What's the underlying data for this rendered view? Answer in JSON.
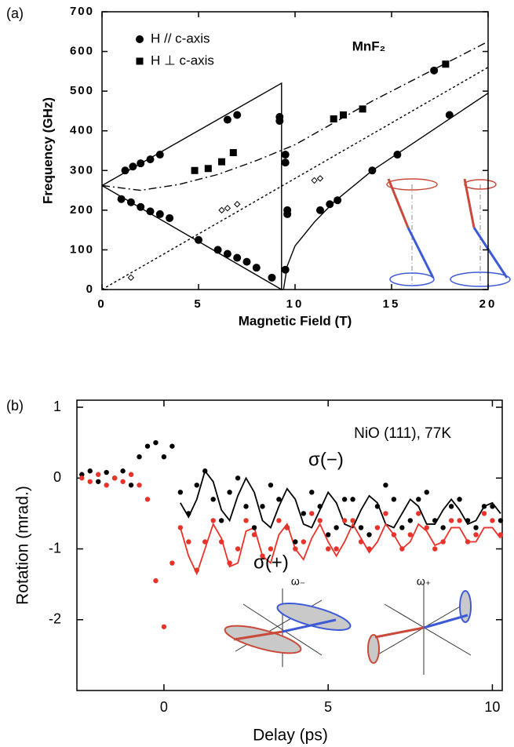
{
  "chart_data": [
    {
      "type": "scatter",
      "panel_label": "(a)",
      "annotation": "MnF₂",
      "x_label": "Magnetic Field (T)",
      "y_label": "Frequency (GHz)",
      "xlim": [
        0,
        20
      ],
      "xticks": [
        0,
        5,
        10,
        15,
        20
      ],
      "ylim": [
        0,
        700
      ],
      "yticks": [
        0,
        100,
        200,
        300,
        400,
        500,
        600,
        700
      ],
      "series": [
        {
          "name": "H // c-axis",
          "color": "#000000",
          "marker": "circle",
          "x": [
            1.2,
            1.6,
            2.0,
            2.5,
            3.0,
            6.5,
            7.0,
            1.0,
            1.5,
            2.0,
            2.5,
            3.0,
            3.5,
            5.0,
            6.0,
            6.5,
            7.0,
            7.5,
            8.0,
            8.8,
            9.2,
            9.2,
            9.5,
            9.5,
            9.6,
            9.6,
            9.5,
            11.3,
            11.8,
            12.2,
            14.0,
            15.3,
            17.2,
            18.0
          ],
          "values": [
            300,
            310,
            318,
            328,
            340,
            428,
            440,
            228,
            220,
            208,
            197,
            190,
            180,
            125,
            100,
            90,
            80,
            70,
            55,
            30,
            435,
            425,
            340,
            320,
            200,
            190,
            50,
            200,
            215,
            225,
            300,
            340,
            552,
            440
          ]
        },
        {
          "name": "H ⊥ c-axis",
          "color": "#000000",
          "marker": "square",
          "x": [
            4.8,
            5.5,
            6.2,
            6.8,
            12.0,
            12.5,
            13.5,
            17.8
          ],
          "values": [
            300,
            305,
            322,
            345,
            430,
            440,
            455,
            568
          ]
        },
        {
          "color": "#000000",
          "marker": "open-diamond",
          "x": [
            1.5,
            6.2,
            6.5,
            7.0,
            11.0,
            11.3
          ],
          "values": [
            30,
            200,
            205,
            215,
            275,
            280
          ]
        }
      ],
      "fits": [
        {
          "style": "solid",
          "x": [
            0,
            9.3,
            9.3,
            0
          ],
          "values": [
            262,
            520,
            0,
            262
          ]
        },
        {
          "style": "dashdot",
          "x": [
            0,
            2,
            4,
            6,
            8,
            10,
            12,
            14,
            16,
            18,
            20
          ],
          "values": [
            262,
            250,
            265,
            290,
            325,
            365,
            420,
            475,
            525,
            575,
            625
          ]
        },
        {
          "style": "dotted",
          "x": [
            0,
            20
          ],
          "values": [
            0,
            560
          ]
        },
        {
          "style": "solid",
          "x": [
            9.4,
            9.6,
            10,
            11,
            12,
            14,
            16,
            18,
            20
          ],
          "values": [
            0,
            60,
            110,
            170,
            220,
            300,
            365,
            430,
            495
          ]
        }
      ]
    },
    {
      "type": "scatter",
      "panel_label": "(b)",
      "annotation": "NiO (111), 77K",
      "x_label": "Delay (ps)",
      "y_label": "Rotation (mrad.)",
      "inset_labels": [
        "ω₋",
        "ω₊"
      ],
      "xlim": [
        -2.65,
        10.3
      ],
      "xticks": [
        0,
        5,
        10
      ],
      "ylim": [
        -3,
        1.1
      ],
      "yticks": [
        -2,
        -1,
        0,
        1
      ],
      "series": [
        {
          "name": "σ(−)",
          "color": "#000000",
          "marker": "dot",
          "x": [
            -2.5,
            -2.25,
            -2,
            -1.75,
            -1.5,
            -1.25,
            -1,
            -0.75,
            -0.5,
            -0.25,
            0,
            0.25,
            0.5,
            0.75,
            1,
            1.25,
            1.5,
            1.75,
            2,
            2.25,
            2.5,
            2.75,
            3,
            3.25,
            3.5,
            3.75,
            4,
            4.25,
            4.5,
            4.75,
            5,
            5.25,
            5.5,
            5.75,
            6,
            6.25,
            6.5,
            6.75,
            7,
            7.25,
            7.5,
            7.75,
            8,
            8.25,
            8.5,
            8.75,
            9,
            9.25,
            9.5,
            9.75,
            10,
            10.25
          ],
          "values": [
            0.05,
            0.1,
            -0.05,
            0.08,
            0.0,
            0.1,
            -0.1,
            0.3,
            0.45,
            0.5,
            0.3,
            0.45,
            -0.2,
            -0.5,
            -0.1,
            0.1,
            -0.3,
            -0.6,
            -0.2,
            0.0,
            -0.4,
            -0.7,
            -0.4,
            -0.1,
            -0.3,
            -0.7,
            -0.9,
            -0.5,
            -0.2,
            -0.4,
            -0.8,
            -0.7,
            -0.3,
            -0.3,
            -0.7,
            -0.8,
            -0.4,
            -0.1,
            -0.3,
            -0.7,
            -0.6,
            -0.3,
            -0.2,
            -0.6,
            -0.7,
            -0.4,
            -0.3,
            -0.6,
            -0.7,
            -0.4,
            -0.4,
            -0.6
          ]
        },
        {
          "name": "σ(+)",
          "color": "#e8332a",
          "marker": "dot",
          "x": [
            -2.5,
            -2.25,
            -2,
            -1.75,
            -1.5,
            -1.25,
            -1,
            -0.75,
            -0.5,
            -0.25,
            0,
            0.25,
            0.5,
            0.75,
            1,
            1.25,
            1.5,
            1.75,
            2,
            2.25,
            2.5,
            2.75,
            3,
            3.25,
            3.5,
            3.75,
            4,
            4.25,
            4.5,
            4.75,
            5,
            5.25,
            5.5,
            5.75,
            6,
            6.25,
            6.5,
            6.75,
            7,
            7.25,
            7.5,
            7.75,
            8,
            8.25,
            8.5,
            8.75,
            9,
            9.25,
            9.5,
            9.75,
            10,
            10.25
          ],
          "values": [
            0.0,
            -0.05,
            0.05,
            -0.1,
            0.0,
            -0.05,
            0.05,
            -0.1,
            -0.3,
            -1.45,
            -2.1,
            -1.2,
            -0.7,
            -0.9,
            -1.3,
            -0.9,
            -0.6,
            -0.9,
            -1.2,
            -1.0,
            -0.6,
            -0.8,
            -1.1,
            -1.0,
            -0.6,
            -0.7,
            -1.0,
            -0.9,
            -0.5,
            -0.6,
            -1.0,
            -1.0,
            -0.6,
            -0.6,
            -0.9,
            -1.0,
            -0.7,
            -0.5,
            -0.8,
            -1.0,
            -0.8,
            -0.5,
            -0.7,
            -1.0,
            -0.9,
            -0.6,
            -0.6,
            -0.9,
            -0.8,
            -0.5,
            -0.6,
            -0.8
          ]
        }
      ],
      "fits": [
        {
          "style": "solid",
          "color": "#000000",
          "x": [
            0.5,
            0.75,
            1,
            1.25,
            1.5,
            1.75,
            2,
            2.25,
            2.5,
            2.75,
            3,
            3.25,
            3.5,
            3.75,
            4,
            4.25,
            4.5,
            4.75,
            5,
            5.25,
            5.5,
            5.75,
            6,
            6.25,
            6.5,
            6.75,
            7,
            7.25,
            7.5,
            7.75,
            8,
            8.25,
            8.5,
            8.75,
            9,
            9.25,
            9.5,
            9.75,
            10,
            10.25
          ],
          "values": [
            -0.35,
            -0.55,
            -0.3,
            0.1,
            -0.05,
            -0.45,
            -0.6,
            -0.25,
            0.0,
            -0.2,
            -0.6,
            -0.7,
            -0.4,
            -0.15,
            -0.3,
            -0.65,
            -0.7,
            -0.45,
            -0.2,
            -0.35,
            -0.65,
            -0.7,
            -0.45,
            -0.25,
            -0.35,
            -0.65,
            -0.7,
            -0.5,
            -0.3,
            -0.4,
            -0.65,
            -0.65,
            -0.45,
            -0.3,
            -0.45,
            -0.65,
            -0.6,
            -0.4,
            -0.35,
            -0.5
          ]
        },
        {
          "style": "solid",
          "color": "#e8332a",
          "x": [
            0.5,
            0.75,
            1,
            1.25,
            1.5,
            1.75,
            2,
            2.25,
            2.5,
            2.75,
            3,
            3.25,
            3.5,
            3.75,
            4,
            4.25,
            4.5,
            4.75,
            5,
            5.25,
            5.5,
            5.75,
            6,
            6.25,
            6.5,
            6.75,
            7,
            7.25,
            7.5,
            7.75,
            8,
            8.25,
            8.5,
            8.75,
            9,
            9.25,
            9.5,
            9.75,
            10,
            10.25
          ],
          "values": [
            -0.7,
            -1.1,
            -1.35,
            -1.0,
            -0.65,
            -0.85,
            -1.25,
            -1.2,
            -0.75,
            -0.7,
            -1.1,
            -1.2,
            -0.8,
            -0.65,
            -1.0,
            -1.15,
            -0.85,
            -0.65,
            -0.9,
            -1.1,
            -0.9,
            -0.65,
            -0.85,
            -1.05,
            -0.9,
            -0.65,
            -0.8,
            -1.0,
            -0.9,
            -0.65,
            -0.75,
            -0.95,
            -0.9,
            -0.7,
            -0.7,
            -0.9,
            -0.9,
            -0.7,
            -0.7,
            -0.85
          ]
        }
      ]
    }
  ]
}
